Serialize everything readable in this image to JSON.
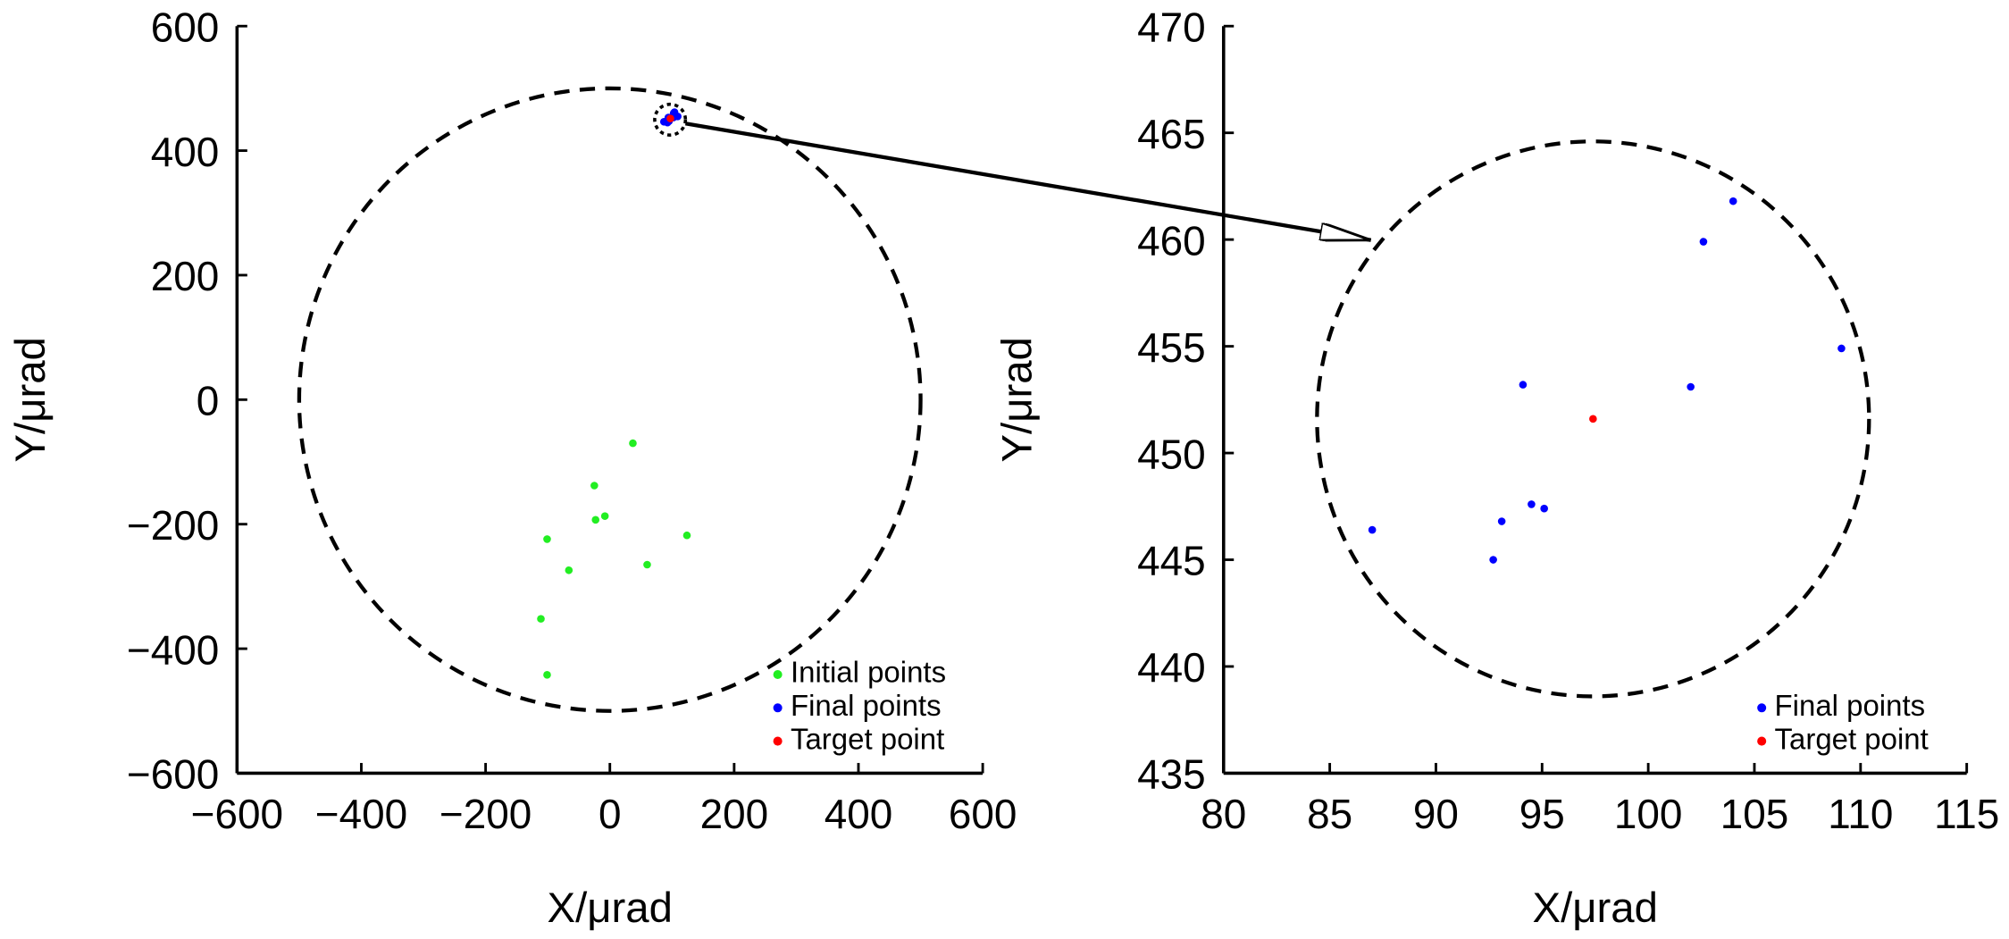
{
  "chart_data": [
    {
      "type": "scatter",
      "xlabel": "X/μrad",
      "ylabel": "Y/μrad",
      "xlim": [
        -600,
        600
      ],
      "ylim": [
        -600,
        600
      ],
      "xticks": [
        {
          "value": -600,
          "label": "−600"
        },
        {
          "value": -400,
          "label": "−400"
        },
        {
          "value": -200,
          "label": "−200"
        },
        0,
        200,
        400,
        600
      ],
      "yticks": [
        {
          "value": -600,
          "label": "−600"
        },
        {
          "value": -400,
          "label": "−400"
        },
        {
          "value": -200,
          "label": "−200"
        },
        0,
        200,
        400,
        600
      ],
      "circle": {
        "cx": 0,
        "cy": 0,
        "r": 500
      },
      "legend": "lower right",
      "series": [
        {
          "name": "Initial points",
          "color": "#22ee22",
          "x": [
            37,
            -25,
            -23,
            -8,
            -101,
            -66,
            60,
            124,
            -111,
            -101
          ],
          "values": [
            -70,
            -138,
            -193,
            -187,
            -224,
            -274,
            -265,
            -218,
            -352,
            -442
          ]
        },
        {
          "name": "Final points",
          "color": "#0000ff",
          "x": [
            104.0,
            102.6,
            109.1,
            94.1,
            102.0,
            94.5,
            95.1,
            93.1,
            87.0,
            92.7
          ],
          "values": [
            461.8,
            459.9,
            454.9,
            453.2,
            453.1,
            447.6,
            447.4,
            446.8,
            446.4,
            445.0
          ]
        },
        {
          "name": "Target point",
          "color": "#ff0000",
          "x": [
            97.4
          ],
          "values": [
            451.6
          ]
        }
      ]
    },
    {
      "type": "scatter",
      "xlabel": "X/μrad",
      "ylabel": "Y/μrad",
      "xlim": [
        80,
        115
      ],
      "ylim": [
        435,
        470
      ],
      "xticks": [
        80,
        85,
        90,
        95,
        100,
        105,
        110,
        115
      ],
      "yticks": [
        435,
        440,
        445,
        450,
        455,
        460,
        465,
        470
      ],
      "circle": {
        "cx": 97.4,
        "cy": 451.6,
        "r": 13
      },
      "legend": "lower right",
      "series": [
        {
          "name": "Final points",
          "color": "#0000ff",
          "x": [
            104.0,
            102.6,
            109.1,
            94.1,
            102.0,
            94.5,
            95.1,
            93.1,
            87.0,
            92.7
          ],
          "values": [
            461.8,
            459.9,
            454.9,
            453.2,
            453.1,
            447.6,
            447.4,
            446.8,
            446.4,
            445.0
          ]
        },
        {
          "name": "Target point",
          "color": "#ff0000",
          "x": [
            97.4
          ],
          "values": [
            451.6
          ]
        }
      ]
    }
  ]
}
